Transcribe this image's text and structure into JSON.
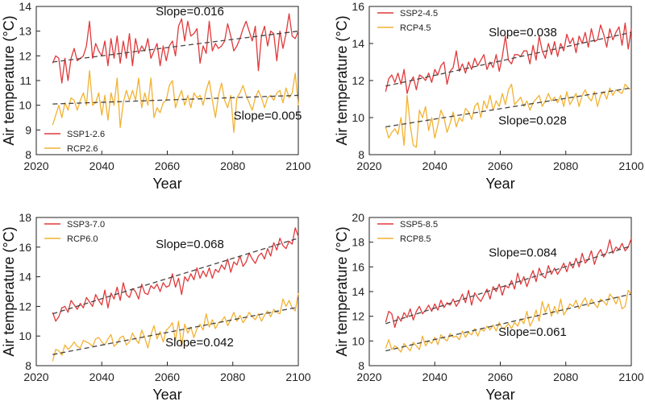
{
  "chart_data": [
    {
      "type": "line",
      "panel": "top-left",
      "xlabel": "Year",
      "ylabel": "Air temperature (°C)",
      "xlim": [
        2020,
        2100
      ],
      "ylim": [
        8,
        14
      ],
      "xticks": [
        2020,
        2040,
        2060,
        2080,
        2100
      ],
      "yticks": [
        8,
        9,
        10,
        11,
        12,
        13,
        14
      ],
      "legend_position": "bottom-left",
      "series": [
        {
          "name": "SSP1-2.6",
          "color": "#e0393b",
          "trend": {
            "start": 11.75,
            "end": 13.0,
            "slope_label": "Slope=0.016",
            "label_position": "top-center"
          },
          "values": [
            11.7,
            12.0,
            11.9,
            10.9,
            11.9,
            11.0,
            11.9,
            12.3,
            11.8,
            11.9,
            12.0,
            12.4,
            13.4,
            11.9,
            12.5,
            12.2,
            12.0,
            12.6,
            11.6,
            12.7,
            11.9,
            12.8,
            11.7,
            12.6,
            11.9,
            12.9,
            11.6,
            12.7,
            12.1,
            12.4,
            12.2,
            12.7,
            11.9,
            12.2,
            12.5,
            11.6,
            12.4,
            11.8,
            12.4,
            12.6,
            12.0,
            13.2,
            13.5,
            12.6,
            13.4,
            12.8,
            12.9,
            13.1,
            11.7,
            12.4,
            12.1,
            13.4,
            12.2,
            12.5,
            12.3,
            12.4,
            12.6,
            13.3,
            12.8,
            12.2,
            12.4,
            12.7,
            13.1,
            13.4,
            13.0,
            12.6,
            13.2,
            11.4,
            12.8,
            13.2,
            12.4,
            13.0,
            12.9,
            11.8,
            13.0,
            12.3,
            12.9,
            13.7,
            12.8,
            12.7,
            13.0
          ]
        },
        {
          "name": "RCP2.6",
          "color": "#f2b233",
          "trend": {
            "start": 10.05,
            "end": 10.4,
            "slope_label": "Slope=0.005",
            "label_position": "bottom-right"
          },
          "values": [
            9.2,
            9.6,
            10.0,
            9.5,
            10.1,
            9.8,
            10.3,
            10.2,
            9.8,
            10.2,
            10.5,
            10.0,
            11.4,
            10.0,
            10.1,
            10.5,
            9.6,
            10.4,
            9.4,
            10.5,
            10.0,
            11.1,
            9.1,
            10.1,
            10.6,
            10.2,
            10.6,
            10.2,
            11.1,
            9.9,
            10.5,
            10.0,
            11.1,
            9.5,
            9.9,
            9.7,
            10.1,
            10.2,
            10.8,
            11.0,
            9.9,
            10.3,
            10.6,
            10.0,
            10.4,
            9.9,
            10.5,
            10.3,
            10.4,
            10.0,
            10.6,
            11.0,
            10.2,
            9.5,
            10.4,
            10.9,
            10.2,
            9.9,
            10.4,
            8.9,
            10.3,
            10.5,
            10.8,
            10.4,
            10.1,
            9.8,
            10.3,
            10.6,
            10.3,
            9.9,
            10.3,
            10.4,
            10.2,
            10.5,
            10.6,
            10.1,
            10.7,
            10.3,
            10.5,
            11.3,
            10.0
          ]
        }
      ]
    },
    {
      "type": "line",
      "panel": "top-right",
      "xlabel": "Year",
      "ylabel": "Air temperature (°C)",
      "xlim": [
        2020,
        2100
      ],
      "ylim": [
        8,
        16
      ],
      "xticks": [
        2020,
        2040,
        2060,
        2080,
        2100
      ],
      "yticks": [
        8,
        10,
        12,
        14,
        16
      ],
      "legend_position": "top-left",
      "series": [
        {
          "name": "SSP2-4.5",
          "color": "#e0393b",
          "trend": {
            "start": 11.7,
            "end": 14.6,
            "slope_label": "Slope=0.038",
            "label_position": "top-center"
          },
          "values": [
            11.4,
            12.1,
            12.3,
            11.9,
            12.4,
            11.8,
            12.6,
            11.3,
            11.9,
            12.2,
            11.5,
            12.3,
            12.2,
            12.0,
            12.4,
            11.9,
            12.6,
            12.3,
            12.8,
            13.0,
            11.8,
            12.5,
            12.7,
            13.6,
            12.5,
            12.9,
            12.4,
            13.0,
            12.6,
            13.2,
            12.8,
            13.1,
            13.4,
            12.6,
            13.0,
            12.7,
            13.4,
            12.5,
            13.3,
            14.4,
            13.1,
            12.9,
            13.4,
            13.4,
            13.3,
            13.6,
            13.6,
            12.9,
            13.9,
            13.1,
            14.4,
            13.6,
            13.2,
            14.0,
            13.4,
            14.1,
            13.3,
            14.0,
            13.6,
            14.5,
            14.0,
            14.3,
            13.5,
            14.4,
            14.0,
            14.6,
            13.8,
            14.8,
            14.1,
            14.2,
            15.0,
            14.5,
            13.8,
            14.8,
            14.2,
            14.6,
            14.9,
            13.9,
            15.1,
            13.7,
            14.8
          ]
        },
        {
          "name": "RCP4.5",
          "color": "#f2b233",
          "trend": {
            "start": 9.5,
            "end": 11.6,
            "slope_label": "Slope=0.028",
            "label_position": "bottom-center"
          },
          "values": [
            9.5,
            8.9,
            9.2,
            9.4,
            9.1,
            10.0,
            8.5,
            11.2,
            9.6,
            8.5,
            8.4,
            10.4,
            10.0,
            10.6,
            9.3,
            10.0,
            8.9,
            9.6,
            10.4,
            10.0,
            9.2,
            9.7,
            10.3,
            9.5,
            10.0,
            9.8,
            10.5,
            10.3,
            9.9,
            10.6,
            10.8,
            10.0,
            10.9,
            10.5,
            11.2,
            10.4,
            10.9,
            10.6,
            11.3,
            10.7,
            11.5,
            11.8,
            10.7,
            10.9,
            11.1,
            10.6,
            10.9,
            10.4,
            10.8,
            11.0,
            11.2,
            10.6,
            10.9,
            11.3,
            10.9,
            11.1,
            10.8,
            11.2,
            10.6,
            11.4,
            10.7,
            11.0,
            11.3,
            10.6,
            11.2,
            11.5,
            11.1,
            10.9,
            11.4,
            10.6,
            11.2,
            11.4,
            11.0,
            11.6,
            11.2,
            11.5,
            11.4,
            11.3,
            11.8,
            11.6,
            11.5
          ]
        }
      ]
    },
    {
      "type": "line",
      "panel": "bottom-left",
      "xlabel": "Year",
      "ylabel": "Air temperature (°C)",
      "xlim": [
        2020,
        2100
      ],
      "ylim": [
        8,
        18
      ],
      "xticks": [
        2020,
        2040,
        2060,
        2080,
        2100
      ],
      "yticks": [
        8,
        10,
        12,
        14,
        16,
        18
      ],
      "legend_position": "top-left",
      "series": [
        {
          "name": "SSP3-7.0",
          "color": "#e0393b",
          "trend": {
            "start": 11.5,
            "end": 16.6,
            "slope_label": "Slope=0.068",
            "label_position": "top-center"
          },
          "values": [
            11.6,
            11.0,
            11.3,
            11.9,
            12.0,
            11.6,
            12.4,
            12.1,
            11.8,
            12.2,
            11.9,
            12.6,
            12.3,
            12.0,
            12.8,
            12.4,
            12.1,
            13.1,
            11.9,
            12.9,
            12.5,
            13.3,
            12.4,
            13.6,
            12.8,
            12.6,
            13.2,
            13.0,
            12.5,
            13.5,
            12.9,
            12.8,
            13.4,
            13.2,
            13.5,
            13.0,
            13.6,
            13.3,
            13.4,
            14.2,
            13.3,
            13.9,
            12.8,
            14.0,
            13.7,
            14.2,
            13.8,
            14.6,
            13.9,
            14.4,
            14.0,
            14.6,
            13.9,
            14.5,
            14.3,
            14.8,
            14.5,
            15.2,
            14.3,
            15.0,
            14.8,
            15.4,
            14.7,
            15.0,
            15.6,
            15.2,
            14.9,
            15.4,
            15.6,
            15.2,
            15.9,
            15.4,
            16.3,
            15.8,
            16.6,
            16.1,
            15.9,
            16.4,
            16.2,
            17.3,
            16.7
          ]
        },
        {
          "name": "RCP6.0",
          "color": "#f2b233",
          "trend": {
            "start": 8.75,
            "end": 11.95,
            "slope_label": "Slope=0.042",
            "label_position": "bottom-center"
          },
          "values": [
            8.3,
            9.1,
            9.0,
            8.7,
            9.4,
            9.1,
            9.3,
            9.6,
            9.3,
            9.2,
            9.7,
            9.6,
            9.5,
            9.3,
            9.8,
            9.9,
            9.6,
            9.4,
            9.8,
            10.1,
            9.3,
            9.5,
            9.9,
            10.0,
            9.4,
            9.6,
            10.2,
            9.8,
            9.5,
            10.4,
            9.9,
            9.2,
            10.1,
            10.7,
            9.8,
            10.3,
            9.6,
            10.4,
            10.6,
            10.9,
            9.7,
            11.0,
            9.3,
            10.8,
            10.2,
            10.6,
            9.9,
            10.5,
            10.8,
            10.4,
            11.5,
            10.6,
            11.1,
            10.5,
            10.9,
            11.0,
            11.3,
            10.7,
            11.1,
            11.6,
            11.0,
            11.4,
            10.9,
            11.2,
            11.6,
            11.3,
            11.1,
            11.5,
            11.0,
            11.4,
            11.7,
            11.3,
            11.8,
            11.6,
            11.5,
            12.5,
            12.0,
            12.4,
            11.9,
            11.7,
            12.9
          ]
        }
      ]
    },
    {
      "type": "line",
      "panel": "bottom-right",
      "xlabel": "Year",
      "ylabel": "Air temperature (°C)",
      "xlim": [
        2020,
        2100
      ],
      "ylim": [
        8,
        20
      ],
      "xticks": [
        2020,
        2040,
        2060,
        2080,
        2100
      ],
      "yticks": [
        8,
        10,
        12,
        14,
        16,
        18,
        20
      ],
      "legend_position": "top-left",
      "series": [
        {
          "name": "SSP5-8.5",
          "color": "#e0393b",
          "trend": {
            "start": 11.4,
            "end": 17.7,
            "slope_label": "Slope=0.084",
            "label_position": "top-center"
          },
          "values": [
            11.5,
            12.4,
            12.2,
            11.1,
            12.0,
            11.6,
            12.3,
            11.9,
            12.6,
            11.7,
            12.4,
            12.8,
            12.2,
            12.5,
            12.9,
            12.4,
            13.0,
            12.5,
            13.3,
            12.7,
            13.1,
            12.9,
            13.4,
            12.8,
            13.2,
            13.8,
            13.1,
            14.1,
            12.9,
            13.9,
            13.5,
            13.2,
            13.7,
            14.2,
            13.4,
            14.4,
            14.0,
            14.6,
            13.7,
            14.5,
            14.3,
            14.9,
            14.2,
            15.5,
            14.6,
            15.2,
            14.4,
            15.1,
            15.7,
            14.8,
            15.9,
            15.3,
            15.1,
            16.1,
            15.4,
            15.9,
            15.4,
            15.8,
            16.3,
            15.6,
            16.4,
            15.9,
            16.7,
            16.0,
            17.1,
            16.3,
            16.6,
            17.3,
            16.2,
            17.0,
            17.4,
            16.8,
            17.2,
            18.2,
            17.1,
            17.6,
            17.4,
            17.9,
            17.3,
            17.6,
            18.3
          ]
        },
        {
          "name": "RCP8.5",
          "color": "#f2b233",
          "trend": {
            "start": 9.2,
            "end": 13.8,
            "slope_label": "Slope=0.061",
            "label_position": "bottom-center"
          },
          "values": [
            9.4,
            10.1,
            9.3,
            9.6,
            9.4,
            9.1,
            9.8,
            9.5,
            9.2,
            9.9,
            9.6,
            9.3,
            10.4,
            9.6,
            10.0,
            9.8,
            10.3,
            9.7,
            10.5,
            10.2,
            10.0,
            10.6,
            10.3,
            10.4,
            10.1,
            10.8,
            10.3,
            10.7,
            10.5,
            11.0,
            10.4,
            11.0,
            10.8,
            11.2,
            10.9,
            11.3,
            10.8,
            11.5,
            11.0,
            11.1,
            11.4,
            11.0,
            11.5,
            11.2,
            11.8,
            11.4,
            12.4,
            11.2,
            11.7,
            12.5,
            11.6,
            13.2,
            12.3,
            13.0,
            12.0,
            12.8,
            12.2,
            13.4,
            12.1,
            12.5,
            13.0,
            12.8,
            13.3,
            12.6,
            13.1,
            13.5,
            12.8,
            13.4,
            13.0,
            12.7,
            13.4,
            13.2,
            12.9,
            13.8,
            13.5,
            13.0,
            13.6,
            12.6,
            12.8,
            14.1,
            13.8
          ]
        }
      ]
    }
  ]
}
